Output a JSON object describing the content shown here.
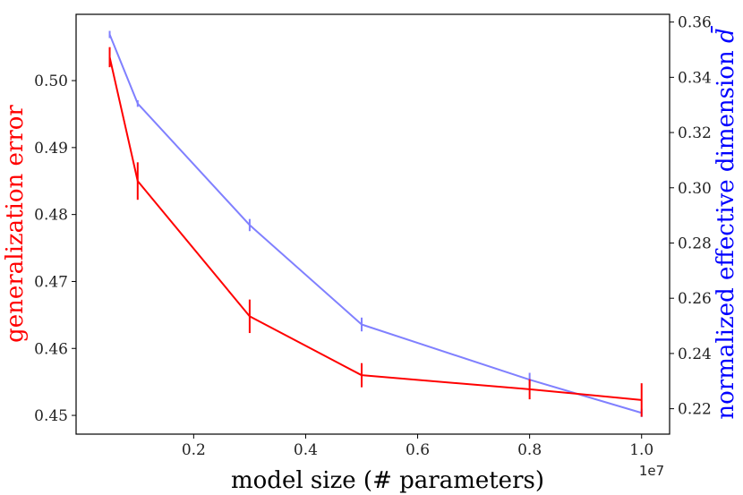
{
  "chart_data": {
    "type": "line",
    "xlabel": "model size (# parameters)",
    "x_offset_label": "1e7",
    "xlim": [
      -0.01,
      1.05
    ],
    "x_ticks": [
      0.2,
      0.4,
      0.6,
      0.8,
      1.0
    ],
    "x_tick_labels": [
      "0.2",
      "0.4",
      "0.6",
      "0.8",
      "1.0"
    ],
    "x": [
      0.05,
      0.1,
      0.3,
      0.5,
      0.8,
      1.0
    ],
    "series": [
      {
        "name": "generalization error",
        "axis": "left",
        "color": "#ff0000",
        "values": [
          0.5035,
          0.485,
          0.4648,
          0.456,
          0.4539,
          0.4523
        ],
        "errors": [
          0.0015,
          0.0028,
          0.0025,
          0.0018,
          0.0015,
          0.0025
        ]
      },
      {
        "name": "normalized effective dimension",
        "axis": "right",
        "color": "#8080ff",
        "values": [
          0.3555,
          0.3305,
          0.2865,
          0.2505,
          0.2305,
          0.2185
        ],
        "errors": [
          0.0013,
          0.0012,
          0.0022,
          0.0025,
          0.0025,
          0.0015
        ]
      }
    ],
    "y_left": {
      "label": "generalization error",
      "color": "#ff0000",
      "lim": [
        0.4472,
        0.5099
      ],
      "ticks": [
        0.45,
        0.46,
        0.47,
        0.48,
        0.49,
        0.5
      ],
      "tick_labels": [
        "0.45",
        "0.46",
        "0.47",
        "0.48",
        "0.49",
        "0.50"
      ]
    },
    "y_right": {
      "label": "normalized effective dimension",
      "label_symbol": "d̄",
      "color": "#0000ff",
      "lim": [
        0.2108,
        0.3628
      ],
      "ticks": [
        0.22,
        0.24,
        0.26,
        0.28,
        0.3,
        0.32,
        0.34,
        0.36
      ],
      "tick_labels": [
        "0.22",
        "0.24",
        "0.26",
        "0.28",
        "0.30",
        "0.32",
        "0.34",
        "0.36"
      ]
    }
  }
}
